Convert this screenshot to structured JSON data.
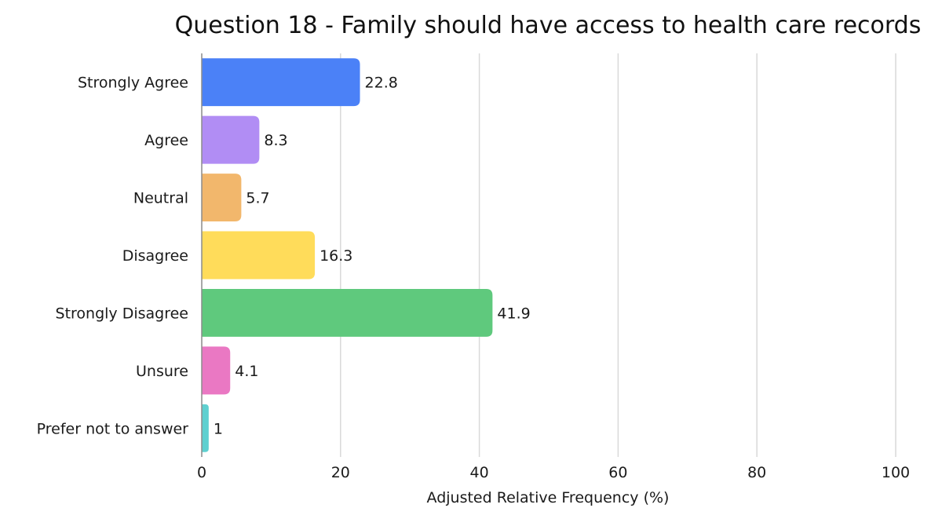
{
  "chart_data": {
    "type": "bar",
    "orientation": "horizontal",
    "title": "Question 18 - Family should have access to health care records",
    "xlabel": "Adjusted Relative Frequency (%)",
    "ylabel": "",
    "xlim": [
      0,
      100
    ],
    "x_ticks": [
      0,
      20,
      40,
      60,
      80,
      100
    ],
    "grid": true,
    "categories": [
      "Strongly Agree",
      "Agree",
      "Neutral",
      "Disagree",
      "Strongly Disagree",
      "Unsure",
      "Prefer not to answer"
    ],
    "values": [
      22.8,
      8.3,
      5.7,
      16.3,
      41.9,
      4.1,
      1
    ],
    "data_labels": [
      "22.8",
      "8.3",
      "5.7",
      "16.3",
      "41.9",
      "4.1",
      "1"
    ],
    "colors": [
      "#4b81f7",
      "#b18df4",
      "#f2b76c",
      "#ffdc5a",
      "#5fc97d",
      "#ea78c3",
      "#5fd0d0"
    ]
  }
}
